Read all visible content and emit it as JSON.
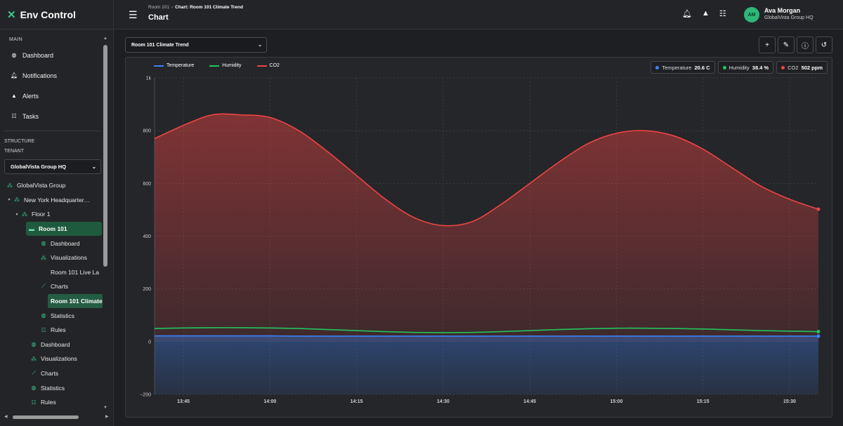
{
  "app": {
    "name": "Env Control"
  },
  "header": {
    "breadcrumb": [
      "Room 101",
      "Chart: Room 101 Climate Trend"
    ],
    "title": "Chart",
    "user": {
      "initials": "AM",
      "name": "Ava Morgan",
      "org": "GlobalVista Group HQ"
    },
    "icons": [
      "bell-icon",
      "alert-triangle-icon",
      "tasks-icon"
    ]
  },
  "sidebar": {
    "main_label": "MAIN",
    "nav": [
      {
        "label": "Dashboard",
        "icon": "dashboard-icon"
      },
      {
        "label": "Notifications",
        "icon": "bell-icon"
      },
      {
        "label": "Alerts",
        "icon": "alert-icon"
      },
      {
        "label": "Tasks",
        "icon": "tasks-icon"
      }
    ],
    "structure_label": "STRUCTURE",
    "tenant_label": "TENANT",
    "tenant_value": "GlobalVista Group HQ",
    "tree": [
      {
        "label": "GlobalVista Group",
        "depth": 0,
        "caret": "",
        "icon": "org-icon"
      },
      {
        "label": "New York Headquarter…",
        "depth": 0,
        "caret": "▾",
        "icon": "org-icon"
      },
      {
        "label": "Floor 1",
        "depth": 1,
        "caret": "▾",
        "icon": "org-icon"
      },
      {
        "label": "Room 101",
        "depth": 2,
        "caret": "",
        "icon": "room-icon",
        "selected": true
      },
      {
        "label": "Dashboard",
        "depth": 3,
        "caret": "",
        "icon": "dashboard-icon"
      },
      {
        "label": "Visualizations",
        "depth": 3,
        "caret": "",
        "icon": "visualizations-icon"
      },
      {
        "label": "Room 101 Live La",
        "depth": 4,
        "caret": "",
        "icon": ""
      },
      {
        "label": "Charts",
        "depth": 3,
        "caret": "",
        "icon": "chart-icon"
      },
      {
        "label": "Room 101 Climate",
        "depth": 4,
        "caret": "",
        "icon": "",
        "active": true
      },
      {
        "label": "Statistics",
        "depth": 3,
        "caret": "",
        "icon": "statistics-icon"
      },
      {
        "label": "Rules",
        "depth": 3,
        "caret": "",
        "icon": "rules-icon"
      },
      {
        "label": "Dashboard",
        "depth": 1.5,
        "caret": "",
        "icon": "dashboard-icon"
      },
      {
        "label": "Visualizations",
        "depth": 1.5,
        "caret": "",
        "icon": "visualizations-icon"
      },
      {
        "label": "Charts",
        "depth": 1.5,
        "caret": "",
        "icon": "chart-icon"
      },
      {
        "label": "Statistics",
        "depth": 1.5,
        "caret": "",
        "icon": "statistics-icon"
      },
      {
        "label": "Rules",
        "depth": 1.5,
        "caret": "",
        "icon": "rules-icon"
      }
    ]
  },
  "toolbar": {
    "chart_select": "Room 101 Climate Trend",
    "buttons": [
      "add-icon",
      "edit-icon",
      "info-icon",
      "refresh-icon"
    ]
  },
  "readouts": [
    {
      "name": "Temperature",
      "value": "20.6 C",
      "color": "#3b82f6"
    },
    {
      "name": "Humidity",
      "value": "38.4 %",
      "color": "#22c55e"
    },
    {
      "name": "CO2",
      "value": "502 ppm",
      "color": "#ef4444"
    }
  ],
  "chart_data": {
    "type": "area",
    "x": [
      "13:40",
      "13:45",
      "13:50",
      "13:55",
      "14:00",
      "14:05",
      "14:10",
      "14:15",
      "14:20",
      "14:25",
      "14:30",
      "14:35",
      "14:40",
      "14:45",
      "14:50",
      "14:55",
      "15:00",
      "15:05",
      "15:10",
      "15:15",
      "15:20",
      "15:25",
      "15:30",
      "15:35"
    ],
    "xticks": [
      "13:45",
      "14:00",
      "14:15",
      "14:30",
      "14:45",
      "15:00",
      "15:15",
      "15:30"
    ],
    "ylim": [
      -200,
      1000
    ],
    "yticks": [
      -200,
      0,
      200,
      400,
      600,
      800,
      1000
    ],
    "ytick_labels": [
      "−200",
      "0",
      "200",
      "400",
      "600",
      "800",
      "1k"
    ],
    "grid": true,
    "legend_position": "top-left",
    "series": [
      {
        "name": "Temperature",
        "color": "#3b82f6",
        "values": [
          22,
          22,
          22,
          22,
          22,
          21,
          21,
          21,
          21,
          21,
          21,
          21,
          21,
          21,
          21,
          21,
          21,
          21,
          21,
          21,
          21,
          21,
          21,
          21
        ]
      },
      {
        "name": "Humidity",
        "color": "#22c55e",
        "values": [
          50,
          52,
          53,
          53,
          52,
          50,
          46,
          42,
          38,
          35,
          34,
          35,
          38,
          42,
          46,
          49,
          51,
          51,
          50,
          48,
          45,
          42,
          40,
          38
        ]
      },
      {
        "name": "CO2",
        "color": "#ef4444",
        "values": [
          770,
          820,
          860,
          860,
          850,
          800,
          720,
          630,
          540,
          470,
          440,
          455,
          520,
          600,
          680,
          750,
          790,
          800,
          780,
          730,
          660,
          590,
          540,
          502
        ]
      }
    ]
  }
}
